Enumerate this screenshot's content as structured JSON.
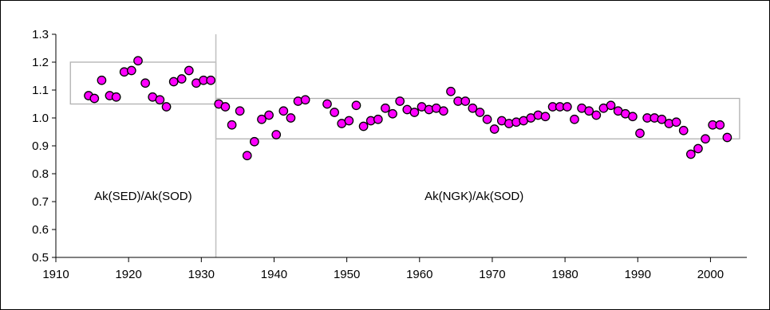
{
  "chart_data": {
    "type": "scatter",
    "xlim": [
      1910,
      2005
    ],
    "ylim": [
      0.5,
      1.3
    ],
    "x_ticks": [
      "1910",
      "1920",
      "1930",
      "1940",
      "1950",
      "1960",
      "1970",
      "1980",
      "1990",
      "2000"
    ],
    "y_ticks": [
      "0.5",
      "0.6",
      "0.7",
      "0.8",
      "0.9",
      "1.0",
      "1.1",
      "1.2",
      "1.3"
    ],
    "grid": false,
    "legend": "none",
    "marker_color": "#ff00ff",
    "marker_edge_color": "#000000",
    "divider_x": 1932,
    "annotations": [
      {
        "text": "Ak(SED)/Ak(SOD)",
        "x": 1922,
        "y": 0.72
      },
      {
        "text": "Ak(NGK)/Ak(SOD)",
        "x": 1967.5,
        "y": 0.72
      }
    ],
    "boxes": [
      {
        "x0": 1912,
        "x1": 1932,
        "y0": 1.05,
        "y1": 1.2
      },
      {
        "x0": 1932,
        "x1": 2004,
        "y0": 0.925,
        "y1": 1.07
      }
    ],
    "points": [
      [
        1914.5,
        1.08
      ],
      [
        1915.3,
        1.07
      ],
      [
        1916.3,
        1.135
      ],
      [
        1917.4,
        1.08
      ],
      [
        1918.3,
        1.075
      ],
      [
        1919.4,
        1.165
      ],
      [
        1920.4,
        1.17
      ],
      [
        1921.3,
        1.205
      ],
      [
        1922.3,
        1.125
      ],
      [
        1923.3,
        1.075
      ],
      [
        1924.3,
        1.065
      ],
      [
        1925.2,
        1.04
      ],
      [
        1926.2,
        1.13
      ],
      [
        1927.3,
        1.14
      ],
      [
        1928.3,
        1.17
      ],
      [
        1929.3,
        1.125
      ],
      [
        1930.3,
        1.135
      ],
      [
        1931.3,
        1.135
      ],
      [
        1932.4,
        1.05
      ],
      [
        1933.3,
        1.04
      ],
      [
        1934.2,
        0.975
      ],
      [
        1935.3,
        1.025
      ],
      [
        1936.3,
        0.865
      ],
      [
        1937.3,
        0.915
      ],
      [
        1938.3,
        0.995
      ],
      [
        1939.3,
        1.01
      ],
      [
        1940.3,
        0.94
      ],
      [
        1941.3,
        1.025
      ],
      [
        1942.3,
        1.0
      ],
      [
        1943.3,
        1.06
      ],
      [
        1944.3,
        1.065
      ],
      [
        1947.3,
        1.05
      ],
      [
        1948.3,
        1.02
      ],
      [
        1949.3,
        0.98
      ],
      [
        1950.3,
        0.99
      ],
      [
        1951.3,
        1.045
      ],
      [
        1952.3,
        0.97
      ],
      [
        1953.3,
        0.99
      ],
      [
        1954.3,
        0.995
      ],
      [
        1955.3,
        1.035
      ],
      [
        1956.3,
        1.015
      ],
      [
        1957.3,
        1.06
      ],
      [
        1958.3,
        1.03
      ],
      [
        1959.3,
        1.02
      ],
      [
        1960.3,
        1.04
      ],
      [
        1961.3,
        1.03
      ],
      [
        1962.3,
        1.035
      ],
      [
        1963.3,
        1.025
      ],
      [
        1964.3,
        1.095
      ],
      [
        1965.3,
        1.06
      ],
      [
        1966.3,
        1.06
      ],
      [
        1967.3,
        1.035
      ],
      [
        1968.3,
        1.02
      ],
      [
        1969.3,
        0.995
      ],
      [
        1970.3,
        0.96
      ],
      [
        1971.3,
        0.99
      ],
      [
        1972.3,
        0.98
      ],
      [
        1973.3,
        0.985
      ],
      [
        1974.3,
        0.99
      ],
      [
        1975.3,
        1.0
      ],
      [
        1976.3,
        1.01
      ],
      [
        1977.3,
        1.005
      ],
      [
        1978.3,
        1.04
      ],
      [
        1979.3,
        1.04
      ],
      [
        1980.3,
        1.04
      ],
      [
        1981.3,
        0.995
      ],
      [
        1982.3,
        1.035
      ],
      [
        1983.3,
        1.025
      ],
      [
        1984.3,
        1.01
      ],
      [
        1985.3,
        1.035
      ],
      [
        1986.3,
        1.045
      ],
      [
        1987.3,
        1.025
      ],
      [
        1988.3,
        1.015
      ],
      [
        1989.3,
        1.005
      ],
      [
        1990.3,
        0.945
      ],
      [
        1991.3,
        1.0
      ],
      [
        1992.3,
        1.0
      ],
      [
        1993.3,
        0.995
      ],
      [
        1994.3,
        0.98
      ],
      [
        1995.3,
        0.985
      ],
      [
        1996.3,
        0.955
      ],
      [
        1997.3,
        0.87
      ],
      [
        1998.3,
        0.89
      ],
      [
        1999.3,
        0.925
      ],
      [
        2000.3,
        0.975
      ],
      [
        2001.3,
        0.975
      ],
      [
        2002.3,
        0.93
      ]
    ]
  }
}
